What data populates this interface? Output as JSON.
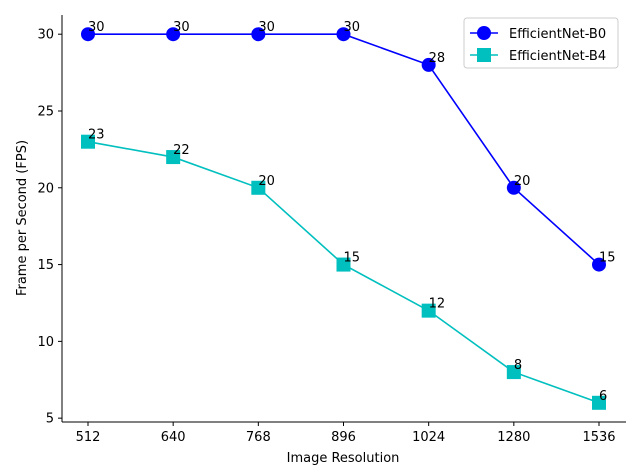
{
  "chart_data": {
    "type": "line",
    "categories": [
      "512",
      "640",
      "768",
      "896",
      "1024",
      "1280",
      "1536"
    ],
    "series": [
      {
        "name": "EfficientNet-B0",
        "values": [
          30,
          30,
          30,
          30,
          28,
          20,
          15
        ],
        "color": "#0000ff",
        "marker": "circle"
      },
      {
        "name": "EfficientNet-B4",
        "values": [
          23,
          22,
          20,
          15,
          12,
          8,
          6
        ],
        "color": "#00bfbf",
        "marker": "square"
      }
    ],
    "xlabel": "Image Resolution",
    "ylabel": "Frame per Second (FPS)",
    "ylim": [
      4.75,
      31.25
    ],
    "yticks": [
      5,
      10,
      15,
      20,
      25,
      30
    ],
    "grid": false,
    "legend_position": "top-right",
    "data_labels": true
  }
}
